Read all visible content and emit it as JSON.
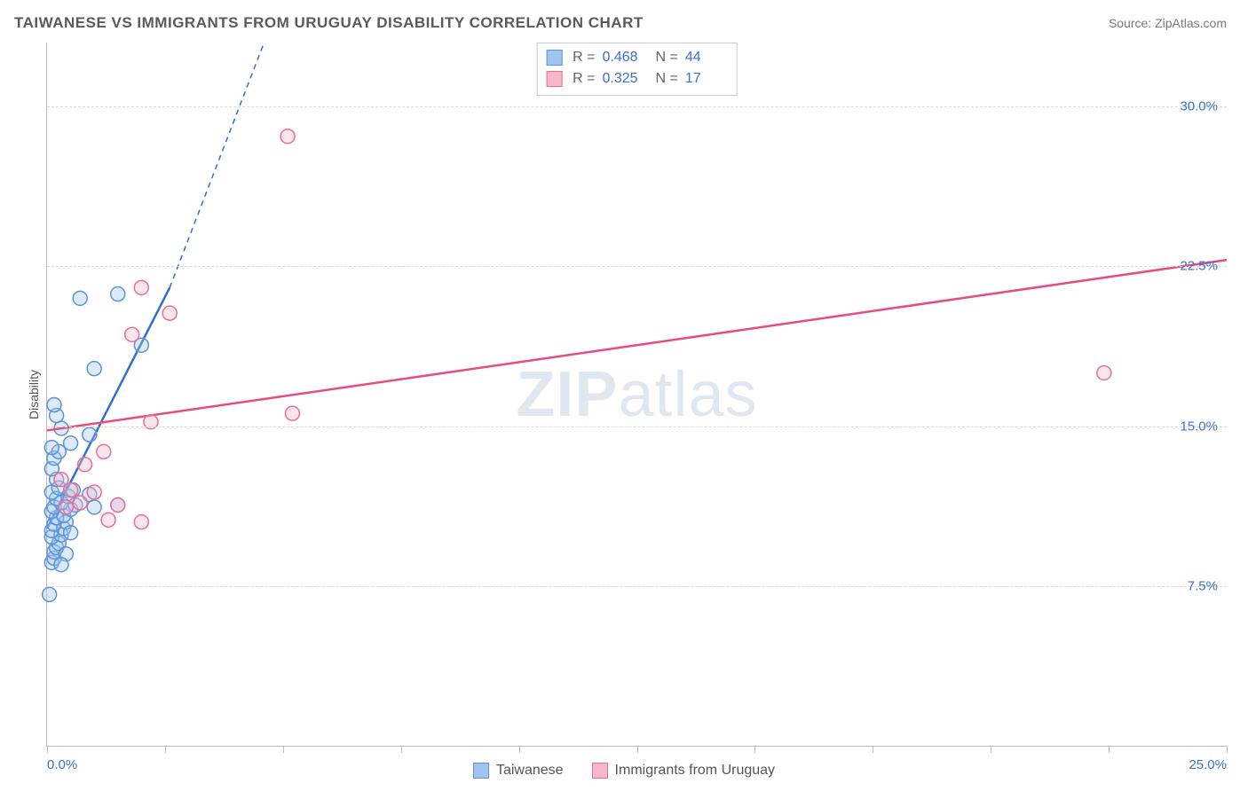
{
  "title": "TAIWANESE VS IMMIGRANTS FROM URUGUAY DISABILITY CORRELATION CHART",
  "source": "Source: ZipAtlas.com",
  "ylabel": "Disability",
  "watermark": {
    "bold": "ZIP",
    "light": "atlas"
  },
  "chart": {
    "type": "scatter",
    "background_color": "#ffffff",
    "grid_color": "#d9d9d9",
    "axis_color": "#bdbdbd",
    "xlim": [
      0,
      25
    ],
    "ylim": [
      0,
      33
    ],
    "x_ticks": [
      0,
      2.5,
      5,
      7.5,
      10,
      12.5,
      15,
      17.5,
      20,
      22.5,
      25
    ],
    "x_tick_labels": {
      "0": "0.0%",
      "25": "25.0%"
    },
    "x_tick_label_color": "#3b6fd6",
    "y_gridlines": [
      7.5,
      15,
      22.5,
      30
    ],
    "y_tick_labels": {
      "7.5": "7.5%",
      "15": "15.0%",
      "22.5": "22.5%",
      "30": "30.0%"
    },
    "y_tick_label_color": "#3b6fd6",
    "marker_radius": 8,
    "marker_fill_opacity": 0.35,
    "marker_stroke_width": 1.5,
    "trend_line_width": 2.5,
    "trend_dash_width": 1.5
  },
  "series": [
    {
      "key": "taiwanese",
      "label": "Taiwanese",
      "color_fill": "#9fc4ee",
      "color_stroke": "#5a93d6",
      "trend_color": "#2f6fd0",
      "R": "0.468",
      "N": "44",
      "trend": {
        "x1": 0.0,
        "y1": 10.2,
        "x2": 2.6,
        "y2": 21.5,
        "dash_to_x": 4.6,
        "dash_to_y": 33.0
      },
      "points": [
        [
          0.05,
          7.1
        ],
        [
          0.1,
          8.6
        ],
        [
          0.15,
          8.8
        ],
        [
          0.15,
          9.1
        ],
        [
          0.2,
          9.3
        ],
        [
          0.25,
          9.5
        ],
        [
          0.1,
          9.8
        ],
        [
          0.3,
          9.9
        ],
        [
          0.1,
          10.1
        ],
        [
          0.35,
          10.2
        ],
        [
          0.15,
          10.4
        ],
        [
          0.4,
          10.5
        ],
        [
          0.2,
          10.7
        ],
        [
          0.35,
          10.8
        ],
        [
          0.1,
          11.0
        ],
        [
          0.5,
          11.1
        ],
        [
          0.15,
          11.2
        ],
        [
          0.6,
          11.3
        ],
        [
          0.3,
          11.4
        ],
        [
          0.2,
          11.6
        ],
        [
          0.45,
          11.7
        ],
        [
          0.1,
          11.9
        ],
        [
          0.55,
          12.0
        ],
        [
          0.25,
          12.1
        ],
        [
          0.9,
          11.8
        ],
        [
          1.0,
          11.2
        ],
        [
          1.5,
          11.3
        ],
        [
          0.2,
          12.5
        ],
        [
          0.1,
          13.0
        ],
        [
          0.15,
          13.5
        ],
        [
          0.25,
          13.8
        ],
        [
          0.1,
          14.0
        ],
        [
          0.5,
          14.2
        ],
        [
          0.9,
          14.6
        ],
        [
          0.3,
          14.9
        ],
        [
          0.2,
          15.5
        ],
        [
          0.15,
          16.0
        ],
        [
          1.0,
          17.7
        ],
        [
          2.0,
          18.8
        ],
        [
          0.7,
          21.0
        ],
        [
          1.5,
          21.2
        ],
        [
          0.4,
          9.0
        ],
        [
          0.3,
          8.5
        ],
        [
          0.5,
          10.0
        ]
      ]
    },
    {
      "key": "uruguay",
      "label": "Immigrants from Uruguay",
      "color_fill": "#f5b7c9",
      "color_stroke": "#e86f94",
      "trend_color": "#e94b7a",
      "R": "0.325",
      "N": "17",
      "trend": {
        "x1": 0.0,
        "y1": 14.8,
        "x2": 25.0,
        "y2": 22.8
      },
      "points": [
        [
          0.4,
          11.2
        ],
        [
          0.7,
          11.4
        ],
        [
          1.5,
          11.3
        ],
        [
          0.5,
          12.0
        ],
        [
          1.0,
          11.9
        ],
        [
          0.8,
          13.2
        ],
        [
          1.2,
          13.8
        ],
        [
          2.0,
          10.5
        ],
        [
          2.2,
          15.2
        ],
        [
          5.2,
          15.6
        ],
        [
          1.8,
          19.3
        ],
        [
          2.6,
          20.3
        ],
        [
          2.0,
          21.5
        ],
        [
          5.1,
          28.6
        ],
        [
          22.4,
          17.5
        ],
        [
          1.3,
          10.6
        ],
        [
          0.3,
          12.5
        ]
      ]
    }
  ],
  "stats_legend": {
    "R_label": "R =",
    "N_label": "N ="
  },
  "bottom_legend": [
    {
      "series": "taiwanese"
    },
    {
      "series": "uruguay"
    }
  ]
}
